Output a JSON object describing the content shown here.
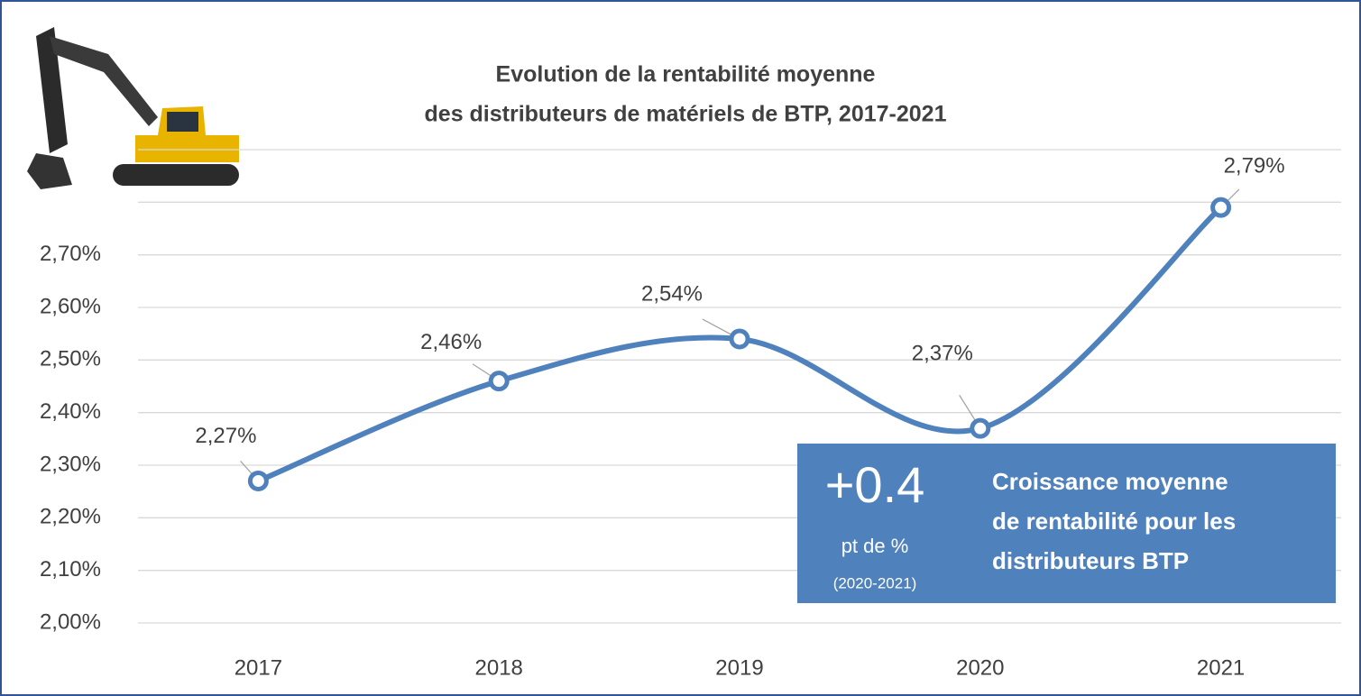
{
  "chart_data": {
    "type": "line",
    "title": [
      "Evolution de la rentabilité moyenne",
      "des distributeurs de matériels de BTP, 2017-2021"
    ],
    "categories": [
      "2017",
      "2018",
      "2019",
      "2020",
      "2021"
    ],
    "series": [
      {
        "color": "#4f81bd",
        "values": [
          2.27,
          2.46,
          2.54,
          2.37,
          2.79
        ],
        "value_labels": [
          "2,27%",
          "2,46%",
          "2,54%",
          "2,37%",
          "2,79%"
        ]
      }
    ],
    "ylim": [
      2.0,
      2.9
    ],
    "yticks": [
      {
        "value": 2.0,
        "label": "2,00%"
      },
      {
        "value": 2.1,
        "label": "2,10%"
      },
      {
        "value": 2.2,
        "label": "2,20%"
      },
      {
        "value": 2.3,
        "label": "2,30%"
      },
      {
        "value": 2.4,
        "label": "2,40%"
      },
      {
        "value": 2.5,
        "label": "2,50%"
      },
      {
        "value": 2.6,
        "label": "2,60%"
      },
      {
        "value": 2.7,
        "label": "2,70%"
      },
      {
        "value": 2.8,
        "label": null
      },
      {
        "value": 2.9,
        "label": null
      }
    ],
    "grid": true,
    "callout": {
      "big": "+0.4",
      "unit": "pt de %",
      "period": "(2020-2021)",
      "text": [
        "Croissance moyenne",
        "de rentabilité pour les",
        "distributeurs BTP"
      ]
    }
  }
}
